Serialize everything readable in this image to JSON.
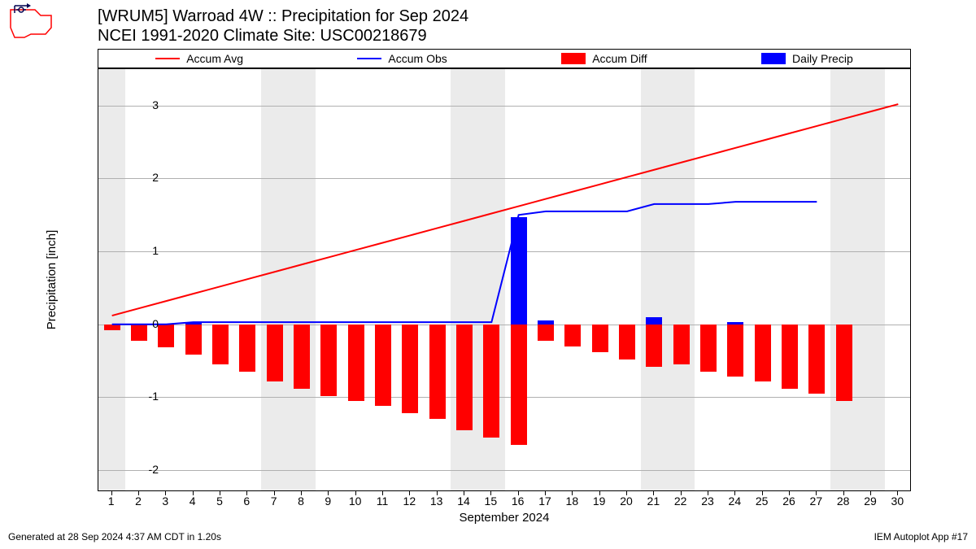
{
  "title_line1": "[WRUM5] Warroad 4W :: Precipitation for Sep 2024",
  "title_line2": "NCEI 1991-2020 Climate Site: USC00218679",
  "footer_left": "Generated at 28 Sep 2024 4:37 AM CDT in 1.20s",
  "footer_right": "IEM Autoplot App #17",
  "ylabel": "Precipitation [inch]",
  "xlabel": "September 2024",
  "legend": {
    "accum_avg": "Accum Avg",
    "accum_obs": "Accum Obs",
    "accum_diff": "Accum Diff",
    "daily_precip": "Daily Precip"
  },
  "colors": {
    "accum_avg": "#ff0000",
    "accum_obs": "#0000ff",
    "accum_diff": "#ff0000",
    "daily_precip": "#0000ff",
    "grid": "#b0b0b0",
    "weekend_band": "#ebebeb",
    "background": "#ffffff",
    "text": "#000000"
  },
  "chart": {
    "type": "composite",
    "x_range": [
      0.5,
      30.5
    ],
    "y_range": [
      -2.3,
      3.5
    ],
    "y_ticks": [
      -2,
      -1,
      0,
      1,
      2,
      3
    ],
    "x_ticks": [
      1,
      2,
      3,
      4,
      5,
      6,
      7,
      8,
      9,
      10,
      11,
      12,
      13,
      14,
      15,
      16,
      17,
      18,
      19,
      20,
      21,
      22,
      23,
      24,
      25,
      26,
      27,
      28,
      29,
      30
    ],
    "days": [
      1,
      2,
      3,
      4,
      5,
      6,
      7,
      8,
      9,
      10,
      11,
      12,
      13,
      14,
      15,
      16,
      17,
      18,
      19,
      20,
      21,
      22,
      23,
      24,
      25,
      26,
      27,
      28,
      29,
      30
    ],
    "weekend_bands": [
      [
        0.5,
        1.5
      ],
      [
        6.5,
        8.5
      ],
      [
        13.5,
        15.5
      ],
      [
        20.5,
        22.5
      ],
      [
        27.5,
        29.5
      ]
    ],
    "accum_avg": [
      0.12,
      0.22,
      0.32,
      0.42,
      0.52,
      0.62,
      0.72,
      0.82,
      0.92,
      1.02,
      1.12,
      1.22,
      1.32,
      1.42,
      1.52,
      1.62,
      1.72,
      1.82,
      1.92,
      2.02,
      2.12,
      2.22,
      2.32,
      2.42,
      2.52,
      2.62,
      2.72,
      2.82,
      2.92,
      3.02
    ],
    "accum_obs": [
      0.0,
      0.0,
      0.0,
      0.03,
      0.03,
      0.03,
      0.03,
      0.03,
      0.03,
      0.03,
      0.03,
      0.03,
      0.03,
      0.03,
      0.03,
      1.5,
      1.55,
      1.55,
      1.55,
      1.55,
      1.65,
      1.65,
      1.65,
      1.68,
      1.68,
      1.68,
      1.68
    ],
    "accum_diff": [
      -0.08,
      -0.22,
      -0.32,
      -0.42,
      -0.55,
      -0.65,
      -0.78,
      -0.88,
      -0.98,
      -1.05,
      -1.12,
      -1.22,
      -1.3,
      -1.45,
      -1.55,
      -1.65,
      -0.22,
      -0.3,
      -0.38,
      -0.48,
      -0.58,
      -0.55,
      -0.65,
      -0.72,
      -0.78,
      -0.88,
      -0.95,
      -1.05
    ],
    "daily_precip": [
      0,
      0,
      0,
      0.03,
      0,
      0,
      0,
      0,
      0,
      0,
      0,
      0,
      0,
      0,
      0,
      1.47,
      0.05,
      0,
      0,
      0,
      0.1,
      0,
      0,
      0.03,
      0,
      0,
      0
    ],
    "bar_width": 0.6,
    "line_width": 2
  },
  "logo_colors": {
    "outline": "#ff0000",
    "instrument": "#000050"
  }
}
